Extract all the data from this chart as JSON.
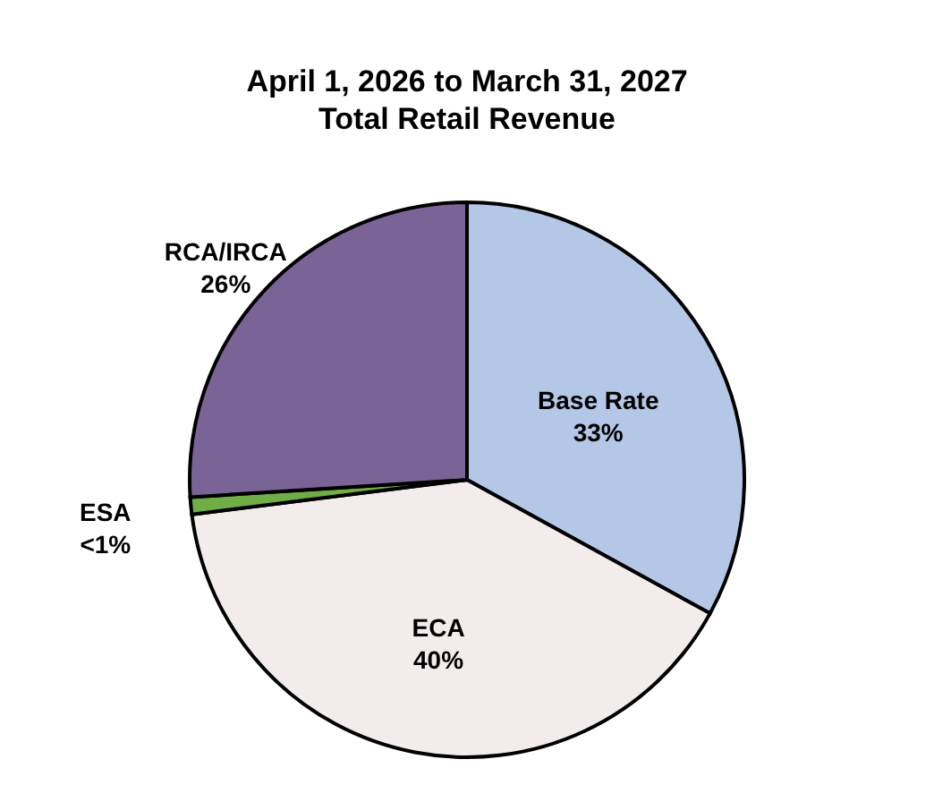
{
  "chart_data": {
    "type": "pie",
    "title": "April 1, 2026 to March 31, 2027",
    "subtitle": "Total Retail Revenue",
    "categories": [
      "Base Rate",
      "ECA",
      "ESA",
      "RCA/IRCA"
    ],
    "values": [
      33,
      40,
      1,
      26
    ],
    "value_labels": [
      "33%",
      "40%",
      "<1%",
      "26%"
    ],
    "colors": [
      "#b4c7e7",
      "#f3ecec",
      "#70ad47",
      "#7a6497"
    ],
    "legend": false
  }
}
